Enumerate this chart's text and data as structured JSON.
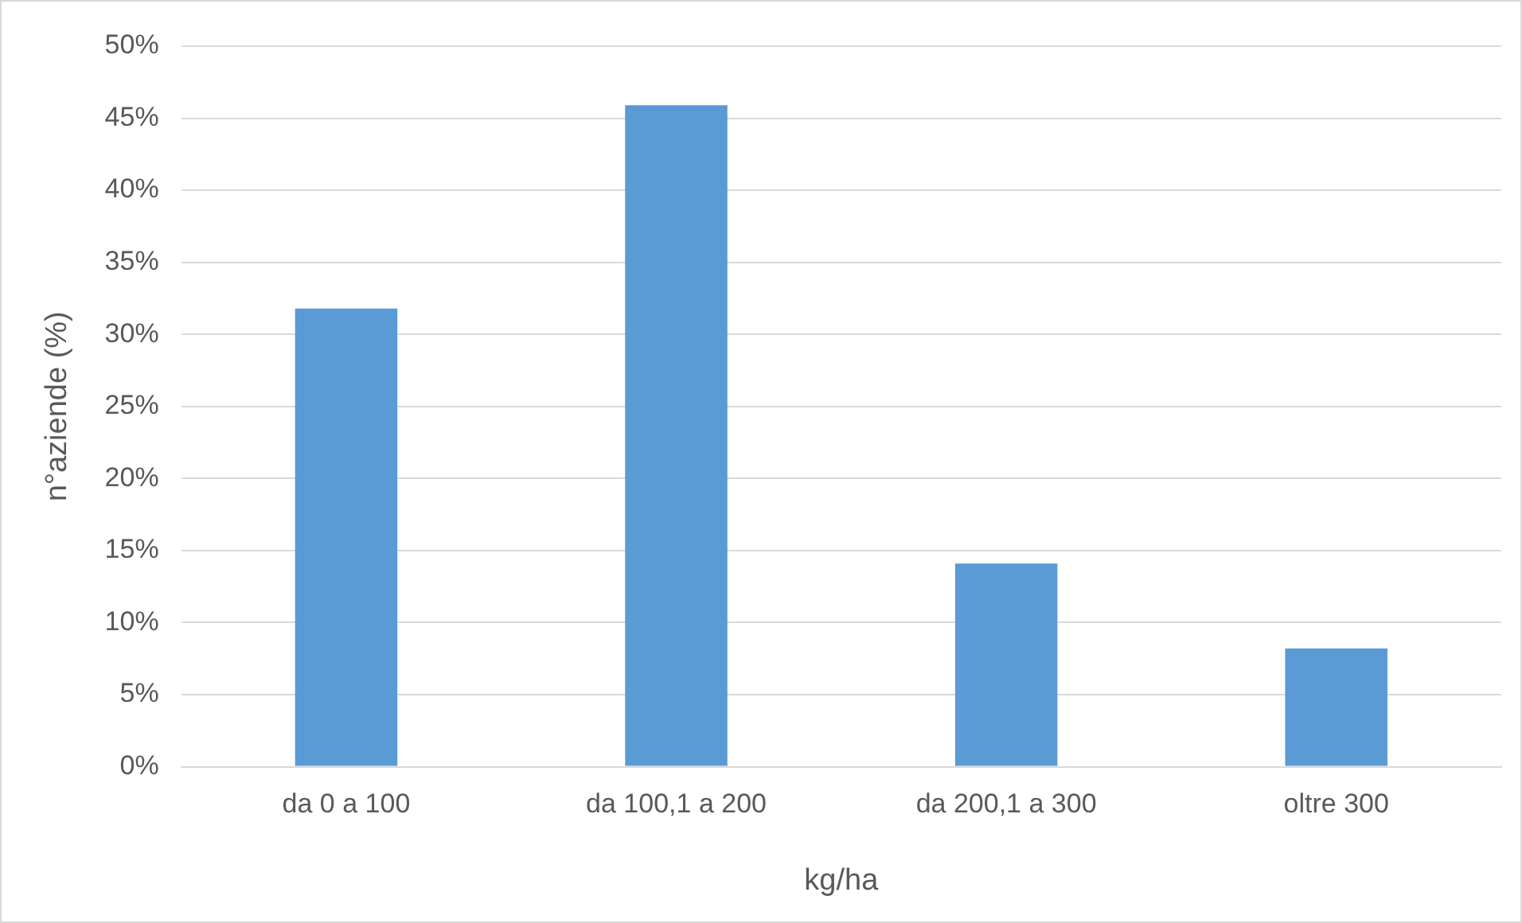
{
  "chart_data": {
    "type": "bar",
    "xlabel": "kg/ha",
    "ylabel": "n°aziende (%)",
    "categories": [
      "da 0 a 100",
      "da 100,1 a 200",
      "da 200,1 a 300",
      "oltre 300"
    ],
    "values": [
      31.8,
      45.9,
      14.1,
      8.2
    ],
    "color": "#5b9bd5",
    "ylim": [
      0,
      50
    ],
    "yticks": [
      {
        "value": 0,
        "label": "0%"
      },
      {
        "value": 5,
        "label": "5%"
      },
      {
        "value": 10,
        "label": "10%"
      },
      {
        "value": 15,
        "label": "15%"
      },
      {
        "value": 20,
        "label": "20%"
      },
      {
        "value": 25,
        "label": "25%"
      },
      {
        "value": 30,
        "label": "30%"
      },
      {
        "value": 35,
        "label": "35%"
      },
      {
        "value": 40,
        "label": "40%"
      },
      {
        "value": 45,
        "label": "45%"
      },
      {
        "value": 50,
        "label": "50%"
      }
    ],
    "grid": "y"
  }
}
